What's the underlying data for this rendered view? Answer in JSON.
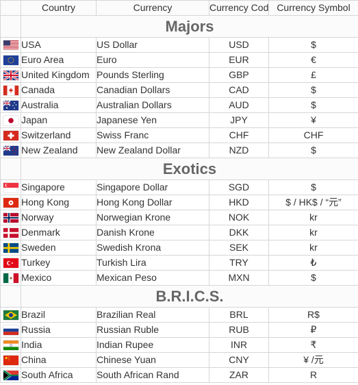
{
  "headers": [
    "Country",
    "Currency",
    "Currency Code",
    "Currency Symbol"
  ],
  "groups": [
    {
      "title": "Majors",
      "rows": [
        {
          "country": "USA",
          "currency": "US Dollar",
          "code": "USD",
          "symbol": "$",
          "flag": "us-flag-icon"
        },
        {
          "country": "Euro Area",
          "currency": "Euro",
          "code": "EUR",
          "symbol": "€",
          "flag": "eu-flag-icon"
        },
        {
          "country": "United Kingdom",
          "currency": "Pounds Sterling",
          "code": "GBP",
          "symbol": "£",
          "flag": "uk-flag-icon"
        },
        {
          "country": "Canada",
          "currency": "Canadian Dollars",
          "code": "CAD",
          "symbol": "$",
          "flag": "canada-flag-icon"
        },
        {
          "country": "Australia",
          "currency": "Australian Dollars",
          "code": "AUD",
          "symbol": "$",
          "flag": "australia-flag-icon"
        },
        {
          "country": "Japan",
          "currency": "Japanese Yen",
          "code": "JPY",
          "symbol": "¥",
          "flag": "japan-flag-icon"
        },
        {
          "country": "Switzerland",
          "currency": "Swiss Franc",
          "code": "CHF",
          "symbol": "CHF",
          "flag": "switzerland-flag-icon"
        },
        {
          "country": "New Zealand",
          "currency": "New Zealand Dollar",
          "code": "NZD",
          "symbol": "$",
          "flag": "new-zealand-flag-icon"
        }
      ]
    },
    {
      "title": "Exotics",
      "rows": [
        {
          "country": "Singapore",
          "currency": "Singapore Dollar",
          "code": "SGD",
          "symbol": "$",
          "flag": "singapore-flag-icon"
        },
        {
          "country": "Hong Kong",
          "currency": "Hong Kong Dollar",
          "code": "HKD",
          "symbol": "$ / HK$ / “元”",
          "flag": "hong-kong-flag-icon"
        },
        {
          "country": "Norway",
          "currency": "Norwegian Krone",
          "code": "NOK",
          "symbol": "kr",
          "flag": "norway-flag-icon"
        },
        {
          "country": "Denmark",
          "currency": "Danish Krone",
          "code": "DKK",
          "symbol": "kr",
          "flag": "denmark-flag-icon"
        },
        {
          "country": "Sweden",
          "currency": "Swedish Krona",
          "code": "SEK",
          "symbol": "kr",
          "flag": "sweden-flag-icon"
        },
        {
          "country": "Turkey",
          "currency": "Turkish Lira",
          "code": "TRY",
          "symbol": "₺",
          "flag": "turkey-flag-icon"
        },
        {
          "country": "Mexico",
          "currency": "Mexican Peso",
          "code": "MXN",
          "symbol": "$",
          "flag": "mexico-flag-icon"
        }
      ]
    },
    {
      "title": "B.R.I.C.S.",
      "rows": [
        {
          "country": "Brazil",
          "currency": "Brazilian Real",
          "code": "BRL",
          "symbol": "R$",
          "flag": "brazil-flag-icon"
        },
        {
          "country": "Russia",
          "currency": "Russian Ruble",
          "code": "RUB",
          "symbol": "₽",
          "flag": "russia-flag-icon"
        },
        {
          "country": "India",
          "currency": "Indian Rupee",
          "code": "INR",
          "symbol": "₹",
          "flag": "india-flag-icon"
        },
        {
          "country": "China",
          "currency": "Chinese Yuan",
          "code": "CNY",
          "symbol": "¥ /元",
          "flag": "china-flag-icon"
        },
        {
          "country": "South Africa",
          "currency": "South African Rand",
          "code": "ZAR",
          "symbol": "R",
          "flag": "south-africa-flag-icon"
        }
      ]
    }
  ]
}
